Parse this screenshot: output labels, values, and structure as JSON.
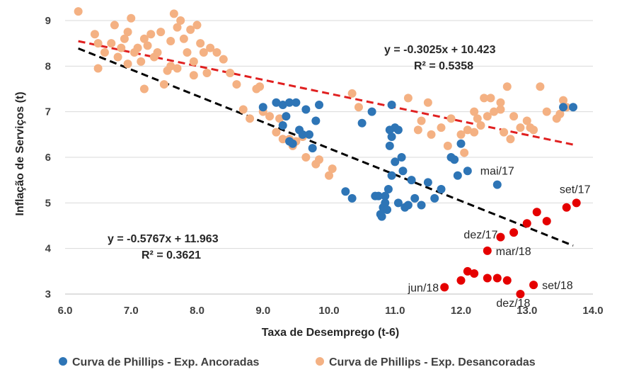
{
  "chart_data": {
    "type": "scatter",
    "xlabel": "Taxa de Desemprego (t-6)",
    "ylabel": "Inflação de Serviços (t)",
    "xlim": [
      6.0,
      14.0
    ],
    "ylim": [
      3,
      9.3
    ],
    "x_ticks": [
      "6.0",
      "7.0",
      "8.0",
      "9.0",
      "10.0",
      "11.0",
      "12.0",
      "13.0",
      "14.0"
    ],
    "y_ticks": [
      "3",
      "4",
      "5",
      "6",
      "7",
      "8",
      "9"
    ],
    "grid": "horizontal",
    "legend_position": "bottom",
    "colors": {
      "anchored": "#2e75b6",
      "unanchored": "#f4b183",
      "recent": "#e50000",
      "trend_unanchored": "#e02020",
      "trend_anchored": "#000000",
      "grid": "#d9d9d9"
    },
    "series": [
      {
        "name": "Curva de Phillips - Exp. Ancoradas",
        "color": "#2e75b6",
        "points": [
          [
            9.0,
            7.1
          ],
          [
            9.2,
            7.2
          ],
          [
            9.3,
            7.15
          ],
          [
            9.35,
            6.9
          ],
          [
            9.4,
            7.2
          ],
          [
            9.45,
            6.3
          ],
          [
            9.5,
            7.2
          ],
          [
            9.55,
            6.6
          ],
          [
            9.6,
            6.5
          ],
          [
            9.4,
            6.35
          ],
          [
            9.3,
            6.7
          ],
          [
            9.65,
            7.05
          ],
          [
            9.7,
            6.5
          ],
          [
            9.75,
            6.2
          ],
          [
            9.8,
            6.8
          ],
          [
            9.85,
            7.15
          ],
          [
            10.25,
            5.25
          ],
          [
            10.35,
            5.1
          ],
          [
            10.5,
            6.75
          ],
          [
            10.65,
            7.0
          ],
          [
            10.7,
            5.15
          ],
          [
            10.75,
            5.15
          ],
          [
            10.8,
            4.7
          ],
          [
            10.82,
            4.9
          ],
          [
            10.85,
            5.0
          ],
          [
            10.88,
            4.85
          ],
          [
            10.9,
            5.3
          ],
          [
            10.92,
            6.6
          ],
          [
            10.95,
            6.45
          ],
          [
            11.0,
            6.65
          ],
          [
            11.05,
            6.6
          ],
          [
            11.1,
            6.0
          ],
          [
            11.12,
            5.7
          ],
          [
            11.15,
            4.9
          ],
          [
            11.2,
            4.95
          ],
          [
            10.92,
            6.25
          ],
          [
            11.0,
            5.9
          ],
          [
            10.95,
            5.6
          ],
          [
            11.3,
            5.1
          ],
          [
            11.4,
            4.95
          ],
          [
            11.5,
            5.45
          ],
          [
            11.6,
            5.1
          ],
          [
            11.7,
            5.3
          ],
          [
            11.85,
            6.0
          ],
          [
            11.9,
            5.95
          ],
          [
            11.95,
            5.6
          ],
          [
            12.0,
            6.3
          ],
          [
            12.1,
            5.7
          ],
          [
            12.55,
            5.4
          ],
          [
            13.55,
            7.1
          ],
          [
            13.7,
            7.1
          ],
          [
            10.95,
            7.15
          ],
          [
            10.85,
            5.15
          ],
          [
            10.78,
            4.75
          ],
          [
            11.05,
            5.0
          ],
          [
            11.25,
            5.5
          ]
        ]
      },
      {
        "name": "Curva de Phillips - Exp. Desancoradas",
        "color": "#f4b183",
        "points": [
          [
            6.2,
            9.2
          ],
          [
            6.45,
            8.7
          ],
          [
            6.5,
            8.5
          ],
          [
            6.6,
            8.3
          ],
          [
            6.7,
            8.5
          ],
          [
            6.75,
            8.9
          ],
          [
            6.8,
            8.2
          ],
          [
            6.85,
            8.4
          ],
          [
            6.9,
            8.6
          ],
          [
            6.95,
            8.75
          ],
          [
            7.0,
            9.05
          ],
          [
            7.05,
            8.3
          ],
          [
            7.1,
            8.4
          ],
          [
            7.15,
            8.1
          ],
          [
            7.2,
            8.6
          ],
          [
            7.25,
            8.45
          ],
          [
            7.3,
            8.7
          ],
          [
            7.35,
            8.2
          ],
          [
            7.4,
            8.3
          ],
          [
            7.45,
            8.75
          ],
          [
            7.5,
            7.6
          ],
          [
            7.55,
            7.9
          ],
          [
            7.6,
            8.0
          ],
          [
            7.65,
            9.15
          ],
          [
            7.7,
            8.85
          ],
          [
            7.75,
            9.0
          ],
          [
            7.8,
            8.6
          ],
          [
            7.85,
            8.3
          ],
          [
            7.9,
            8.8
          ],
          [
            7.95,
            8.1
          ],
          [
            8.0,
            8.9
          ],
          [
            8.05,
            8.5
          ],
          [
            8.1,
            8.3
          ],
          [
            8.15,
            7.85
          ],
          [
            8.2,
            8.4
          ],
          [
            8.3,
            8.3
          ],
          [
            6.5,
            7.95
          ],
          [
            6.95,
            8.05
          ],
          [
            7.2,
            7.5
          ],
          [
            7.6,
            8.55
          ],
          [
            7.7,
            7.95
          ],
          [
            7.95,
            7.8
          ],
          [
            8.4,
            8.15
          ],
          [
            8.5,
            7.85
          ],
          [
            8.6,
            7.6
          ],
          [
            8.7,
            7.05
          ],
          [
            8.8,
            6.85
          ],
          [
            8.9,
            7.5
          ],
          [
            8.95,
            7.55
          ],
          [
            9.0,
            7.0
          ],
          [
            9.1,
            6.9
          ],
          [
            9.2,
            6.55
          ],
          [
            9.25,
            6.85
          ],
          [
            9.3,
            6.4
          ],
          [
            9.4,
            6.4
          ],
          [
            9.45,
            6.25
          ],
          [
            9.5,
            6.35
          ],
          [
            9.6,
            6.45
          ],
          [
            9.65,
            6.0
          ],
          [
            9.8,
            5.85
          ],
          [
            9.85,
            5.95
          ],
          [
            10.0,
            5.6
          ],
          [
            10.05,
            5.75
          ],
          [
            10.35,
            7.4
          ],
          [
            10.45,
            7.1
          ],
          [
            11.2,
            7.3
          ],
          [
            11.35,
            6.6
          ],
          [
            11.4,
            6.8
          ],
          [
            11.5,
            7.2
          ],
          [
            11.55,
            6.5
          ],
          [
            11.7,
            6.65
          ],
          [
            11.8,
            6.25
          ],
          [
            11.85,
            6.85
          ],
          [
            12.0,
            6.5
          ],
          [
            12.05,
            6.1
          ],
          [
            12.1,
            6.6
          ],
          [
            12.2,
            7.0
          ],
          [
            12.25,
            6.85
          ],
          [
            12.3,
            6.7
          ],
          [
            12.35,
            7.3
          ],
          [
            12.4,
            6.9
          ],
          [
            12.45,
            7.3
          ],
          [
            12.5,
            7.0
          ],
          [
            12.6,
            7.05
          ],
          [
            12.65,
            6.55
          ],
          [
            12.7,
            7.55
          ],
          [
            12.75,
            6.4
          ],
          [
            12.8,
            6.9
          ],
          [
            12.9,
            6.65
          ],
          [
            13.0,
            6.8
          ],
          [
            13.05,
            6.65
          ],
          [
            13.1,
            6.6
          ],
          [
            13.2,
            7.55
          ],
          [
            13.3,
            7.0
          ],
          [
            13.45,
            6.85
          ],
          [
            13.5,
            6.95
          ],
          [
            13.55,
            7.25
          ],
          [
            13.6,
            7.1
          ],
          [
            12.6,
            7.2
          ],
          [
            12.2,
            6.55
          ]
        ]
      },
      {
        "color": "#e50000",
        "points": [
          [
            11.75,
            3.15
          ],
          [
            12.0,
            3.3
          ],
          [
            12.1,
            3.5
          ],
          [
            12.2,
            3.45
          ],
          [
            12.4,
            3.35
          ],
          [
            12.55,
            3.35
          ],
          [
            12.7,
            3.3
          ],
          [
            12.9,
            3.0
          ],
          [
            13.1,
            3.2
          ],
          [
            12.4,
            3.95
          ],
          [
            12.6,
            4.25
          ],
          [
            12.8,
            4.35
          ],
          [
            13.0,
            4.55
          ],
          [
            13.15,
            4.8
          ],
          [
            13.3,
            4.6
          ],
          [
            13.6,
            4.9
          ],
          [
            13.75,
            5.0
          ]
        ]
      }
    ],
    "trendlines": [
      {
        "slope": -0.3025,
        "intercept": 10.423,
        "x_range": [
          6.2,
          13.75
        ],
        "color": "#e02020",
        "equation": "y = -0.3025x + 10.423",
        "r2": "R² = 0.5358"
      },
      {
        "slope": -0.5767,
        "intercept": 11.963,
        "x_range": [
          6.2,
          13.7
        ],
        "color": "#000000",
        "equation": "y = -0.5767x + 11.963",
        "r2": "R² = 0.3621"
      }
    ],
    "annotations": [
      {
        "text": "mai/17",
        "x": 12.55,
        "y": 5.4
      },
      {
        "text": "set/17",
        "x": 13.75,
        "y": 5.0
      },
      {
        "text": "dez/17",
        "x": 12.6,
        "y": 4.25
      },
      {
        "text": "mar/18",
        "x": 12.4,
        "y": 3.95
      },
      {
        "text": "jun/18",
        "x": 11.75,
        "y": 3.15
      },
      {
        "text": "dez/18",
        "x": 12.9,
        "y": 3.0
      },
      {
        "text": "set/18",
        "x": 13.1,
        "y": 3.2
      }
    ]
  }
}
